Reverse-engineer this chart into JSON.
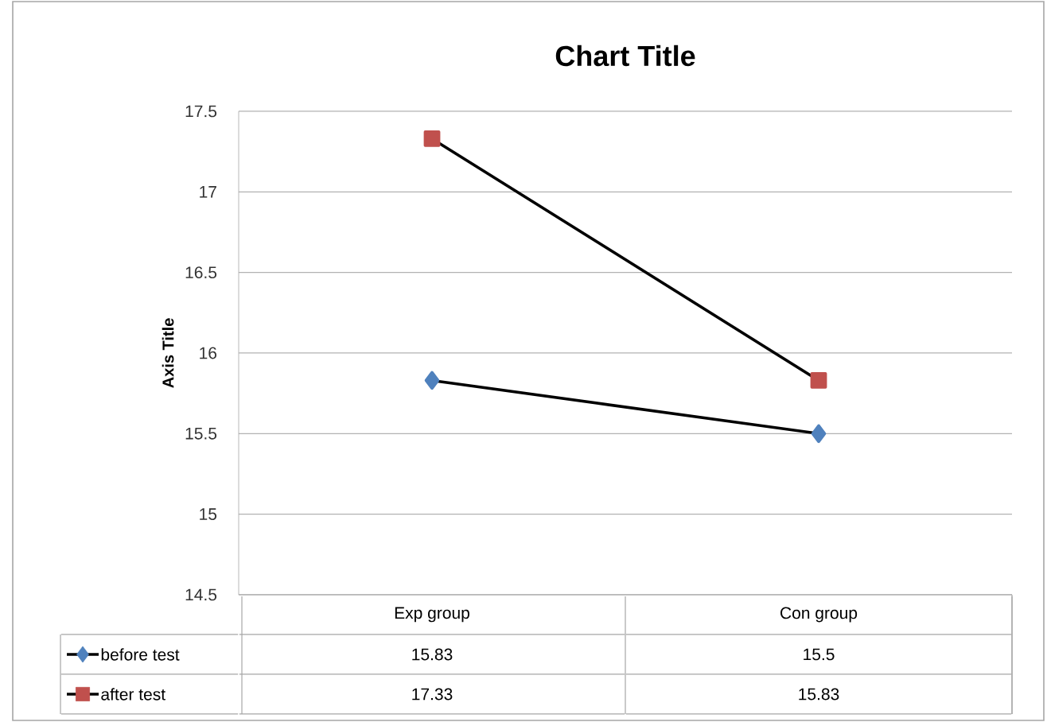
{
  "chart_data": {
    "type": "line",
    "title": "Chart Title",
    "ylabel": "Axis Title",
    "categories": [
      "Exp group",
      "Con group"
    ],
    "series": [
      {
        "name": "before test",
        "color": "#4f81bd",
        "marker": "diamond",
        "values": [
          15.83,
          15.5
        ]
      },
      {
        "name": "after test",
        "color": "#c0504d",
        "marker": "square",
        "values": [
          17.33,
          15.83
        ]
      }
    ],
    "ylim": [
      14.5,
      17.5
    ],
    "yticks": [
      14.5,
      15,
      15.5,
      16,
      16.5,
      17,
      17.5
    ],
    "grid": "y",
    "legend": "bottom",
    "data_labels": true,
    "line_style": "solid"
  }
}
